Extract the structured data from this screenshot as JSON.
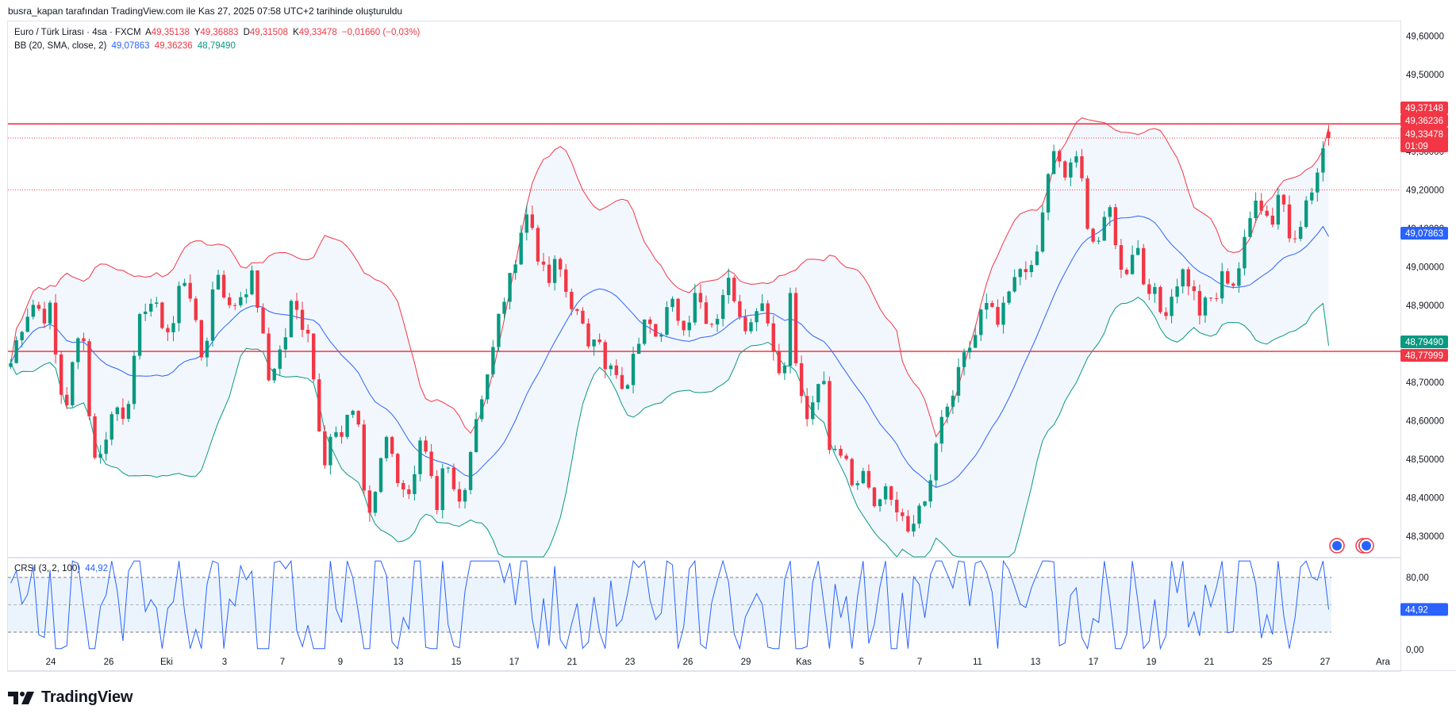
{
  "header": {
    "credit": "busra_kapan tarafından TradingView.com ile Kas 27, 2025 07:58 UTC+2 tarihinde oluşturuldu"
  },
  "legend": {
    "symbol": "Euro / Türk Lirası · 4sa · FXCM",
    "open_label": "A",
    "open": "49,35138",
    "high_label": "Y",
    "high": "49,36883",
    "low_label": "D",
    "low": "49,31508",
    "close_label": "K",
    "close": "49,33478",
    "change": "−0,01660 (−0,03%)",
    "bb_label": "BB (20, SMA, close, 2)",
    "bb_basis": "49,07863",
    "bb_upper": "49,36236",
    "bb_lower": "48,79490",
    "crsi_label": "CRSI (3, 2, 100)",
    "crsi_value": "44,92"
  },
  "price_axis": {
    "ticks": [
      "49,60000",
      "49,50000",
      "49,40000",
      "49,30000",
      "49,20000",
      "49,10000",
      "49,00000",
      "48,90000",
      "48,80000",
      "48,70000",
      "48,60000",
      "48,50000",
      "48,40000",
      "48,30000"
    ],
    "badges": {
      "resistance": "49,37148",
      "bb_upper": "49,36236",
      "last_price": "49,33478",
      "countdown": "01:09",
      "bb_basis": "49,07863",
      "bb_lower": "48,79490",
      "support": "48,77999"
    }
  },
  "crsi_axis": {
    "ticks": [
      "80,00",
      "0,00"
    ],
    "badge": "44,92"
  },
  "time_axis": {
    "labels": [
      "24",
      "26",
      "Eki",
      "3",
      "7",
      "9",
      "13",
      "15",
      "17",
      "21",
      "23",
      "26",
      "29",
      "Kas",
      "5",
      "7",
      "11",
      "13",
      "17",
      "19",
      "21",
      "25",
      "27",
      "Ara"
    ]
  },
  "brand": {
    "name": "TradingView"
  },
  "colors": {
    "up": "#089981",
    "down": "#f23645",
    "bb_upper": "#f23645",
    "bb_basis": "#2962ff",
    "bb_lower": "#089981",
    "bb_fill": "#e8f1fc",
    "hline": "#f23645",
    "crsi": "#2962ff",
    "crsi_band": "#e3effc"
  },
  "chart_data": [
    {
      "type": "candlestick",
      "title": "Euro / Türk Lirası · 4sa · FXCM",
      "x_labels": [
        "24",
        "26",
        "Eki",
        "3",
        "7",
        "9",
        "13",
        "15",
        "17",
        "21",
        "23",
        "26",
        "29",
        "Kas",
        "5",
        "7",
        "11",
        "13",
        "17",
        "19",
        "21",
        "25",
        "27",
        "Ara"
      ],
      "ylim": [
        48.25,
        49.64
      ],
      "horizontal_lines": [
        49.37148,
        48.77999
      ],
      "dotted_lines": [
        49.33478,
        49.2
      ],
      "overlay": "Bollinger Bands (20, SMA, close, 2)",
      "close_path": [
        48.75,
        48.83,
        48.88,
        48.91,
        48.87,
        48.89,
        48.68,
        48.65,
        48.78,
        48.85,
        48.54,
        48.49,
        48.58,
        48.64,
        48.62,
        48.69,
        48.85,
        48.92,
        48.89,
        48.85,
        48.82,
        48.95,
        48.98,
        48.84,
        48.74,
        48.93,
        49.0,
        48.88,
        48.91,
        48.94,
        48.97,
        48.88,
        48.7,
        48.76,
        48.8,
        48.91,
        48.86,
        48.84,
        48.65,
        48.5,
        48.58,
        48.54,
        48.6,
        48.66,
        48.41,
        48.34,
        48.5,
        48.58,
        48.46,
        48.4,
        48.45,
        48.54,
        48.48,
        48.34,
        48.5,
        48.42,
        48.38,
        48.5,
        48.62,
        48.7,
        48.78,
        48.9,
        48.95,
        49.05,
        49.14,
        49.1,
        48.99,
        48.96,
        49.02,
        48.94,
        48.9,
        48.84,
        48.8,
        48.86,
        48.72,
        48.74,
        48.66,
        48.72,
        48.8,
        48.9,
        48.85,
        48.82,
        48.91,
        48.88,
        48.82,
        48.95,
        48.9,
        48.85,
        48.88,
        48.97,
        48.93,
        48.87,
        48.84,
        48.92,
        48.9,
        48.77,
        48.7,
        48.92,
        48.68,
        48.61,
        48.63,
        48.74,
        48.51,
        48.55,
        48.48,
        48.44,
        48.49,
        48.42,
        48.38,
        48.44,
        48.37,
        48.33,
        48.3,
        48.4,
        48.36,
        48.53,
        48.6,
        48.65,
        48.72,
        48.78,
        48.82,
        48.9,
        48.88,
        48.84,
        48.92,
        48.96,
        49.02,
        48.98,
        49.06,
        49.24,
        49.3,
        49.22,
        49.28,
        49.26,
        49.12,
        49.05,
        49.1,
        49.16,
        48.98,
        49.0,
        49.08,
        48.96,
        48.95,
        48.88,
        48.9,
        48.96,
        48.99,
        48.94,
        48.88,
        48.91,
        48.92,
        48.99,
        48.95,
        49.01,
        49.1,
        49.2,
        49.14,
        49.12,
        49.22,
        49.08,
        49.1,
        49.15,
        49.2,
        49.27,
        49.33
      ]
    },
    {
      "type": "line",
      "title": "CRSI (3, 2, 100)",
      "ylim": [
        0,
        100
      ],
      "band": [
        20,
        80
      ],
      "last_value": 44.92
    }
  ]
}
